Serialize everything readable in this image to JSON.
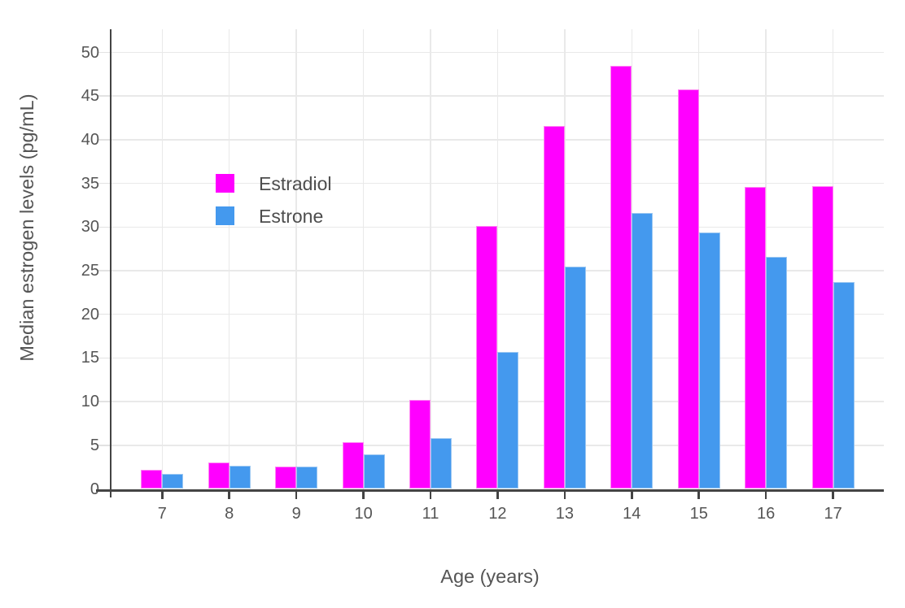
{
  "chart_data": {
    "type": "bar",
    "title": "",
    "categories": [
      "7",
      "8",
      "9",
      "10",
      "11",
      "12",
      "13",
      "14",
      "15",
      "16",
      "17"
    ],
    "series": [
      {
        "name": "Estradiol",
        "color": "#ff00ff",
        "edge_color": "#ff85f3",
        "values": [
          2.2,
          3.0,
          2.6,
          5.4,
          10.2,
          30.1,
          41.6,
          48.5,
          45.8,
          34.6,
          34.7
        ]
      },
      {
        "name": "Estrone",
        "color": "#4499ee",
        "edge_color": "#9dc8f2",
        "values": [
          1.7,
          2.7,
          2.6,
          4.0,
          5.8,
          15.7,
          25.5,
          31.6,
          29.4,
          26.6,
          23.7
        ]
      }
    ],
    "xlabel": "Age (years)",
    "ylabel": "Median estrogen levels (pg/mL)",
    "ylim": [
      0,
      52.5
    ],
    "yticks": [
      0,
      5,
      10,
      15,
      20,
      25,
      30,
      35,
      40,
      45,
      50
    ],
    "grid": true,
    "legend_position": "inside-top-left",
    "bar_mode": "grouped"
  },
  "colors": {
    "background": "#ffffff",
    "axis": "#444444",
    "grid": "#e9e9e9",
    "y_tick_stub": "#e2e2e2",
    "tick_label": "#555555",
    "axis_title": "#555555",
    "legend_text": "#4d4d4d"
  }
}
